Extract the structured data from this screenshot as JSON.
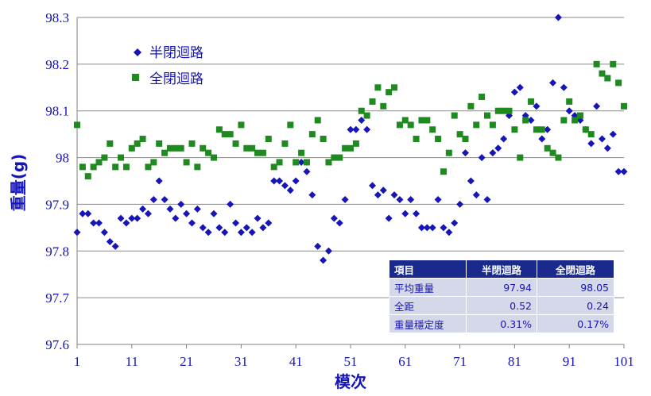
{
  "chart_data": {
    "type": "scatter",
    "xlabel": "模次",
    "ylabel": "重量(g)",
    "xlim": [
      1,
      101
    ],
    "ylim": [
      97.6,
      98.3
    ],
    "x_ticks": [
      "1",
      "11",
      "21",
      "31",
      "41",
      "51",
      "61",
      "71",
      "81",
      "91",
      "101"
    ],
    "y_ticks": [
      "97.6",
      "97.7",
      "97.8",
      "97.9",
      "98",
      "98.1",
      "98.2",
      "98.3"
    ],
    "grid": "horizontal",
    "legend_position": "top-left",
    "series": [
      {
        "name": "半閉迴路",
        "color": "#1515b8",
        "marker": "diamond",
        "values": [
          97.84,
          97.88,
          97.88,
          97.86,
          97.86,
          97.84,
          97.82,
          97.81,
          97.87,
          97.86,
          97.87,
          97.87,
          97.89,
          97.88,
          97.91,
          97.95,
          97.91,
          97.89,
          97.87,
          97.9,
          97.88,
          97.86,
          97.89,
          97.85,
          97.84,
          97.88,
          97.85,
          97.84,
          97.9,
          97.86,
          97.84,
          97.85,
          97.84,
          97.87,
          97.85,
          97.86,
          97.95,
          97.95,
          97.94,
          97.93,
          97.95,
          97.99,
          97.97,
          97.92,
          97.81,
          97.78,
          97.8,
          97.87,
          97.86,
          97.91,
          98.06,
          98.06,
          98.08,
          98.06,
          97.94,
          97.92,
          97.93,
          97.87,
          97.92,
          97.91,
          97.88,
          97.91,
          97.88,
          97.85,
          97.85,
          97.85,
          97.91,
          97.85,
          97.84,
          97.86,
          97.9,
          98.01,
          97.95,
          97.92,
          98.0,
          97.91,
          98.01,
          98.02,
          98.04,
          98.09,
          98.14,
          98.15,
          98.09,
          98.08,
          98.11,
          98.04,
          98.06,
          98.16,
          98.3,
          98.15,
          98.1,
          98.09,
          98.08,
          98.06,
          98.03,
          98.11,
          98.04,
          98.02,
          98.05,
          97.97,
          97.97
        ]
      },
      {
        "name": "全閉迴路",
        "color": "#1f8a1f",
        "marker": "square",
        "values": [
          98.07,
          97.98,
          97.96,
          97.98,
          97.99,
          98.0,
          98.03,
          97.98,
          98.0,
          97.98,
          98.02,
          98.03,
          98.04,
          97.98,
          97.99,
          98.03,
          98.01,
          98.02,
          98.02,
          98.02,
          97.99,
          98.03,
          97.98,
          98.02,
          98.01,
          98.0,
          98.06,
          98.05,
          98.05,
          98.03,
          98.07,
          98.02,
          98.02,
          98.01,
          98.01,
          98.04,
          97.98,
          97.99,
          98.03,
          98.07,
          97.99,
          98.01,
          97.99,
          98.05,
          98.08,
          98.04,
          97.99,
          98.0,
          98.0,
          98.02,
          98.02,
          98.03,
          98.1,
          98.09,
          98.12,
          98.15,
          98.11,
          98.14,
          98.15,
          98.07,
          98.08,
          98.07,
          98.04,
          98.08,
          98.08,
          98.06,
          98.04,
          97.97,
          98.01,
          98.09,
          98.05,
          98.04,
          98.11,
          98.07,
          98.13,
          98.09,
          98.07,
          98.1,
          98.1,
          98.1,
          98.06,
          98.0,
          98.08,
          98.12,
          98.06,
          98.06,
          98.02,
          98.01,
          98.0,
          98.08,
          98.12,
          98.08,
          98.09,
          98.06,
          98.05,
          98.2,
          98.18,
          98.17,
          98.2,
          98.16,
          98.11
        ]
      }
    ],
    "table": {
      "headers": [
        "項目",
        "半閉迴路",
        "全閉迴路"
      ],
      "rows": [
        [
          "平均重量",
          "97.94",
          "98.05"
        ],
        [
          "全距",
          "0.52",
          "0.24"
        ],
        [
          "重量穩定度",
          "0.31%",
          "0.17%"
        ]
      ]
    }
  }
}
